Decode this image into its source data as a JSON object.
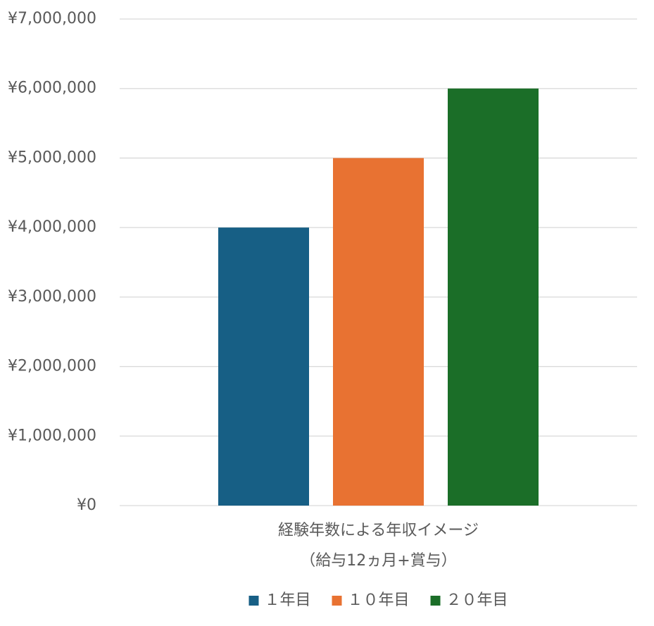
{
  "chart_data": {
    "type": "bar",
    "categories": [
      [
        "経験年数による年収イメージ",
        "（給与12ヵ月+賞与）"
      ]
    ],
    "series": [
      {
        "name": "１年目",
        "color": "#175f85",
        "values": [
          4000000
        ]
      },
      {
        "name": "１０年目",
        "color": "#e87232",
        "values": [
          5000000
        ]
      },
      {
        "name": "２０年目",
        "color": "#1b6e28",
        "values": [
          6000000
        ]
      }
    ],
    "ylim": [
      0,
      7000000
    ],
    "yticks": [
      {
        "value": 0,
        "label": "¥0"
      },
      {
        "value": 1000000,
        "label": "¥1,000,000"
      },
      {
        "value": 2000000,
        "label": "¥2,000,000"
      },
      {
        "value": 3000000,
        "label": "¥3,000,000"
      },
      {
        "value": 4000000,
        "label": "¥4,000,000"
      },
      {
        "value": 5000000,
        "label": "¥5,000,000"
      },
      {
        "value": 6000000,
        "label": "¥6,000,000"
      },
      {
        "value": 7000000,
        "label": "¥7,000,000"
      }
    ],
    "grid": true,
    "legend": "bottom"
  }
}
